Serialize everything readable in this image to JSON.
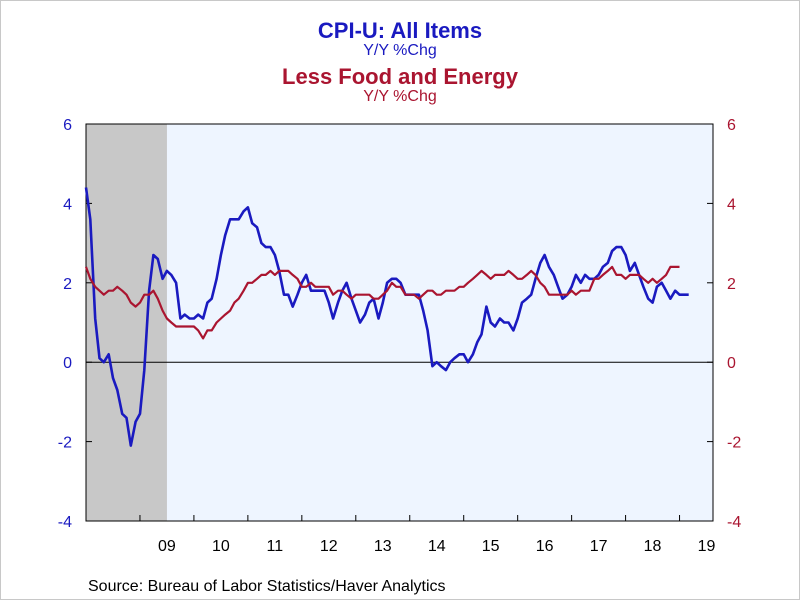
{
  "colors": {
    "series1": "#1a1ac0",
    "series2": "#aa1530",
    "plot_bg": "#eef5ff",
    "recession": "#c8c8c8"
  },
  "chart_data": {
    "type": "line",
    "title_lines": [
      {
        "text": "CPI-U: All Items",
        "color": "#1a1ac0"
      },
      {
        "text": "Y/Y %Chg",
        "color": "#1a1ac0"
      },
      {
        "text": "Less Food and Energy",
        "color": "#aa1530"
      },
      {
        "text": "Y/Y %Chg",
        "color": "#aa1530"
      }
    ],
    "source": "Source:  Bureau of Labor Statistics/Haver Analytics",
    "x_range": [
      2008.0,
      2019.62
    ],
    "x_tick_labels": [
      {
        "label": "09",
        "x": 2009.5
      },
      {
        "label": "10",
        "x": 2010.5
      },
      {
        "label": "11",
        "x": 2011.5
      },
      {
        "label": "12",
        "x": 2012.5
      },
      {
        "label": "13",
        "x": 2013.5
      },
      {
        "label": "14",
        "x": 2014.5
      },
      {
        "label": "15",
        "x": 2015.5
      },
      {
        "label": "16",
        "x": 2016.5
      },
      {
        "label": "17",
        "x": 2017.5
      },
      {
        "label": "18",
        "x": 2018.5
      },
      {
        "label": "19",
        "x": 2019.5
      }
    ],
    "ylim": [
      -4,
      6
    ],
    "y_ticks": [
      -4,
      -2,
      0,
      2,
      4,
      6
    ],
    "recession_band": [
      2008.0,
      2009.5
    ],
    "grid": false,
    "series": [
      {
        "name": "CPI-U: All Items",
        "axis": "left",
        "color": "#1a1ac0",
        "points": [
          [
            2008.0,
            4.4
          ],
          [
            2008.08,
            3.6
          ],
          [
            2008.17,
            1.1
          ],
          [
            2008.25,
            0.1
          ],
          [
            2008.33,
            0.0
          ],
          [
            2008.42,
            0.2
          ],
          [
            2008.5,
            -0.4
          ],
          [
            2008.58,
            -0.7
          ],
          [
            2008.67,
            -1.3
          ],
          [
            2008.75,
            -1.4
          ],
          [
            2008.83,
            -2.1
          ],
          [
            2008.92,
            -1.5
          ],
          [
            2009.0,
            -1.3
          ],
          [
            2009.08,
            -0.2
          ],
          [
            2009.17,
            1.8
          ],
          [
            2009.25,
            2.7
          ],
          [
            2009.33,
            2.6
          ],
          [
            2009.42,
            2.1
          ],
          [
            2009.5,
            2.3
          ],
          [
            2009.58,
            2.2
          ],
          [
            2009.67,
            2.0
          ],
          [
            2009.75,
            1.1
          ],
          [
            2009.83,
            1.2
          ],
          [
            2009.92,
            1.1
          ],
          [
            2010.0,
            1.1
          ],
          [
            2010.08,
            1.2
          ],
          [
            2010.17,
            1.1
          ],
          [
            2010.25,
            1.5
          ],
          [
            2010.33,
            1.6
          ],
          [
            2010.42,
            2.1
          ],
          [
            2010.5,
            2.7
          ],
          [
            2010.58,
            3.2
          ],
          [
            2010.67,
            3.6
          ],
          [
            2010.75,
            3.6
          ],
          [
            2010.83,
            3.6
          ],
          [
            2010.92,
            3.8
          ],
          [
            2011.0,
            3.9
          ],
          [
            2011.08,
            3.5
          ],
          [
            2011.17,
            3.4
          ],
          [
            2011.25,
            3.0
          ],
          [
            2011.33,
            2.9
          ],
          [
            2011.42,
            2.9
          ],
          [
            2011.5,
            2.7
          ],
          [
            2011.58,
            2.3
          ],
          [
            2011.67,
            1.7
          ],
          [
            2011.75,
            1.7
          ],
          [
            2011.83,
            1.4
          ],
          [
            2011.92,
            1.7
          ],
          [
            2012.0,
            2.0
          ],
          [
            2012.08,
            2.2
          ],
          [
            2012.17,
            1.8
          ],
          [
            2012.25,
            1.8
          ],
          [
            2012.33,
            1.8
          ],
          [
            2012.42,
            1.8
          ],
          [
            2012.5,
            1.5
          ],
          [
            2012.58,
            1.1
          ],
          [
            2012.67,
            1.5
          ],
          [
            2012.75,
            1.8
          ],
          [
            2012.83,
            2.0
          ],
          [
            2012.92,
            1.6
          ],
          [
            2013.0,
            1.3
          ],
          [
            2013.08,
            1.0
          ],
          [
            2013.17,
            1.2
          ],
          [
            2013.25,
            1.5
          ],
          [
            2013.33,
            1.6
          ],
          [
            2013.42,
            1.1
          ],
          [
            2013.5,
            1.5
          ],
          [
            2013.58,
            2.0
          ],
          [
            2013.67,
            2.1
          ],
          [
            2013.75,
            2.1
          ],
          [
            2013.83,
            2.0
          ],
          [
            2013.92,
            1.7
          ],
          [
            2014.0,
            1.7
          ],
          [
            2014.08,
            1.7
          ],
          [
            2014.17,
            1.7
          ],
          [
            2014.25,
            1.3
          ],
          [
            2014.33,
            0.8
          ],
          [
            2014.42,
            -0.1
          ],
          [
            2014.5,
            0.0
          ],
          [
            2014.58,
            -0.1
          ],
          [
            2014.67,
            -0.2
          ],
          [
            2014.75,
            0.0
          ],
          [
            2014.83,
            0.1
          ],
          [
            2014.92,
            0.2
          ],
          [
            2015.0,
            0.2
          ],
          [
            2015.08,
            0.0
          ],
          [
            2015.17,
            0.2
          ],
          [
            2015.25,
            0.5
          ],
          [
            2015.33,
            0.7
          ],
          [
            2015.42,
            1.4
          ],
          [
            2015.5,
            1.0
          ],
          [
            2015.58,
            0.9
          ],
          [
            2015.67,
            1.1
          ],
          [
            2015.75,
            1.0
          ],
          [
            2015.83,
            1.0
          ],
          [
            2015.92,
            0.8
          ],
          [
            2016.0,
            1.1
          ],
          [
            2016.08,
            1.5
          ],
          [
            2016.17,
            1.6
          ],
          [
            2016.25,
            1.7
          ],
          [
            2016.33,
            2.1
          ],
          [
            2016.42,
            2.5
          ],
          [
            2016.5,
            2.7
          ],
          [
            2016.58,
            2.4
          ],
          [
            2016.67,
            2.2
          ],
          [
            2016.75,
            1.9
          ],
          [
            2016.83,
            1.6
          ],
          [
            2016.92,
            1.7
          ],
          [
            2017.0,
            1.9
          ],
          [
            2017.08,
            2.2
          ],
          [
            2017.17,
            2.0
          ],
          [
            2017.25,
            2.2
          ],
          [
            2017.33,
            2.1
          ],
          [
            2017.42,
            2.1
          ],
          [
            2017.5,
            2.2
          ],
          [
            2017.58,
            2.4
          ],
          [
            2017.67,
            2.5
          ],
          [
            2017.75,
            2.8
          ],
          [
            2017.83,
            2.9
          ],
          [
            2017.92,
            2.9
          ],
          [
            2018.0,
            2.7
          ],
          [
            2018.08,
            2.3
          ],
          [
            2018.17,
            2.5
          ],
          [
            2018.25,
            2.2
          ],
          [
            2018.33,
            1.9
          ],
          [
            2018.42,
            1.6
          ],
          [
            2018.5,
            1.5
          ],
          [
            2018.58,
            1.9
          ],
          [
            2018.67,
            2.0
          ],
          [
            2018.75,
            1.8
          ],
          [
            2018.83,
            1.6
          ],
          [
            2018.92,
            1.8
          ],
          [
            2019.0,
            1.7
          ],
          [
            2019.08,
            1.7
          ],
          [
            2019.17,
            1.7
          ]
        ]
      },
      {
        "name": "Less Food and Energy",
        "axis": "right",
        "color": "#aa1530",
        "points": [
          [
            2008.0,
            2.4
          ],
          [
            2008.08,
            2.1
          ],
          [
            2008.17,
            1.9
          ],
          [
            2008.25,
            1.8
          ],
          [
            2008.33,
            1.7
          ],
          [
            2008.42,
            1.8
          ],
          [
            2008.5,
            1.8
          ],
          [
            2008.58,
            1.9
          ],
          [
            2008.67,
            1.8
          ],
          [
            2008.75,
            1.7
          ],
          [
            2008.83,
            1.5
          ],
          [
            2008.92,
            1.4
          ],
          [
            2009.0,
            1.5
          ],
          [
            2009.08,
            1.7
          ],
          [
            2009.17,
            1.7
          ],
          [
            2009.25,
            1.8
          ],
          [
            2009.33,
            1.6
          ],
          [
            2009.42,
            1.3
          ],
          [
            2009.5,
            1.1
          ],
          [
            2009.58,
            1.0
          ],
          [
            2009.67,
            0.9
          ],
          [
            2009.75,
            0.9
          ],
          [
            2009.83,
            0.9
          ],
          [
            2009.92,
            0.9
          ],
          [
            2010.0,
            0.9
          ],
          [
            2010.08,
            0.8
          ],
          [
            2010.17,
            0.6
          ],
          [
            2010.25,
            0.8
          ],
          [
            2010.33,
            0.8
          ],
          [
            2010.42,
            1.0
          ],
          [
            2010.5,
            1.1
          ],
          [
            2010.58,
            1.2
          ],
          [
            2010.67,
            1.3
          ],
          [
            2010.75,
            1.5
          ],
          [
            2010.83,
            1.6
          ],
          [
            2010.92,
            1.8
          ],
          [
            2011.0,
            2.0
          ],
          [
            2011.08,
            2.0
          ],
          [
            2011.17,
            2.1
          ],
          [
            2011.25,
            2.2
          ],
          [
            2011.33,
            2.2
          ],
          [
            2011.42,
            2.3
          ],
          [
            2011.5,
            2.2
          ],
          [
            2011.58,
            2.3
          ],
          [
            2011.67,
            2.3
          ],
          [
            2011.75,
            2.3
          ],
          [
            2011.83,
            2.2
          ],
          [
            2011.92,
            2.1
          ],
          [
            2012.0,
            1.9
          ],
          [
            2012.08,
            1.9
          ],
          [
            2012.17,
            2.0
          ],
          [
            2012.25,
            1.9
          ],
          [
            2012.33,
            1.9
          ],
          [
            2012.42,
            1.9
          ],
          [
            2012.5,
            1.9
          ],
          [
            2012.58,
            1.7
          ],
          [
            2012.67,
            1.8
          ],
          [
            2012.75,
            1.8
          ],
          [
            2012.83,
            1.7
          ],
          [
            2012.92,
            1.6
          ],
          [
            2013.0,
            1.7
          ],
          [
            2013.08,
            1.7
          ],
          [
            2013.17,
            1.7
          ],
          [
            2013.25,
            1.7
          ],
          [
            2013.33,
            1.6
          ],
          [
            2013.42,
            1.6
          ],
          [
            2013.5,
            1.7
          ],
          [
            2013.58,
            1.8
          ],
          [
            2013.67,
            2.0
          ],
          [
            2013.75,
            1.9
          ],
          [
            2013.83,
            1.9
          ],
          [
            2013.92,
            1.7
          ],
          [
            2014.0,
            1.7
          ],
          [
            2014.08,
            1.7
          ],
          [
            2014.17,
            1.6
          ],
          [
            2014.25,
            1.7
          ],
          [
            2014.33,
            1.8
          ],
          [
            2014.42,
            1.8
          ],
          [
            2014.5,
            1.7
          ],
          [
            2014.58,
            1.7
          ],
          [
            2014.67,
            1.8
          ],
          [
            2014.75,
            1.8
          ],
          [
            2014.83,
            1.8
          ],
          [
            2014.92,
            1.9
          ],
          [
            2015.0,
            1.9
          ],
          [
            2015.08,
            2.0
          ],
          [
            2015.17,
            2.1
          ],
          [
            2015.25,
            2.2
          ],
          [
            2015.33,
            2.3
          ],
          [
            2015.42,
            2.2
          ],
          [
            2015.5,
            2.1
          ],
          [
            2015.58,
            2.2
          ],
          [
            2015.67,
            2.2
          ],
          [
            2015.75,
            2.2
          ],
          [
            2015.83,
            2.3
          ],
          [
            2015.92,
            2.2
          ],
          [
            2016.0,
            2.1
          ],
          [
            2016.08,
            2.1
          ],
          [
            2016.17,
            2.2
          ],
          [
            2016.25,
            2.3
          ],
          [
            2016.33,
            2.2
          ],
          [
            2016.42,
            2.0
          ],
          [
            2016.5,
            1.9
          ],
          [
            2016.58,
            1.7
          ],
          [
            2016.67,
            1.7
          ],
          [
            2016.75,
            1.7
          ],
          [
            2016.83,
            1.7
          ],
          [
            2016.92,
            1.7
          ],
          [
            2017.0,
            1.8
          ],
          [
            2017.08,
            1.7
          ],
          [
            2017.17,
            1.8
          ],
          [
            2017.25,
            1.8
          ],
          [
            2017.33,
            1.8
          ],
          [
            2017.42,
            2.1
          ],
          [
            2017.5,
            2.1
          ],
          [
            2017.58,
            2.2
          ],
          [
            2017.67,
            2.3
          ],
          [
            2017.75,
            2.4
          ],
          [
            2017.83,
            2.2
          ],
          [
            2017.92,
            2.2
          ],
          [
            2018.0,
            2.1
          ],
          [
            2018.08,
            2.2
          ],
          [
            2018.17,
            2.2
          ],
          [
            2018.25,
            2.2
          ],
          [
            2018.33,
            2.1
          ],
          [
            2018.42,
            2.0
          ],
          [
            2018.5,
            2.1
          ],
          [
            2018.58,
            2.0
          ],
          [
            2018.67,
            2.1
          ],
          [
            2018.75,
            2.2
          ],
          [
            2018.83,
            2.4
          ],
          [
            2018.92,
            2.4
          ],
          [
            2019.0,
            2.4
          ]
        ]
      }
    ]
  }
}
